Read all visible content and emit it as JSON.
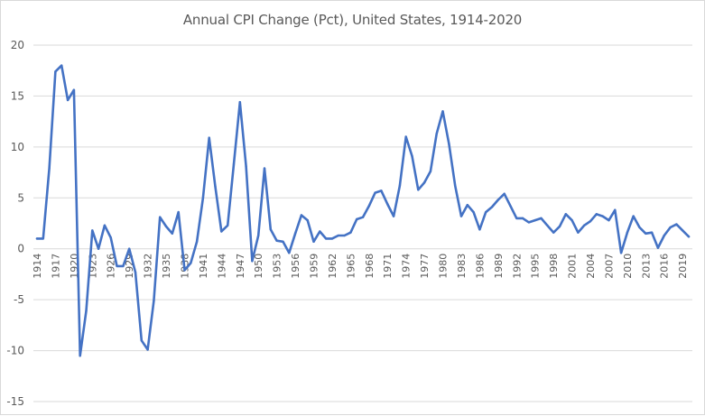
{
  "chart_data": {
    "type": "line",
    "title": "Annual CPI Change (Pct), United States, 1914-2020",
    "xlabel": "",
    "ylabel": "",
    "ylim": [
      -15,
      20
    ],
    "yticks": [
      20,
      15,
      10,
      5,
      0,
      -5,
      -10,
      -15
    ],
    "grid": true,
    "legend": "none",
    "line_color": "#4472c4",
    "x_tick_labels": [
      "1914",
      "1917",
      "1920",
      "1923",
      "1926",
      "1929",
      "1932",
      "1935",
      "1938",
      "1941",
      "1944",
      "1947",
      "1950",
      "1953",
      "1956",
      "1959",
      "1962",
      "1965",
      "1968",
      "1971",
      "1974",
      "1977",
      "1980",
      "1983",
      "1986",
      "1989",
      "1992",
      "1995",
      "1998",
      "2001",
      "2004",
      "2007",
      "2010",
      "2013",
      "2016",
      "2019"
    ],
    "series": [
      {
        "name": "Annual CPI Change (Pct)",
        "x": [
          1914,
          1915,
          1916,
          1917,
          1918,
          1919,
          1920,
          1921,
          1922,
          1923,
          1924,
          1925,
          1926,
          1927,
          1928,
          1929,
          1930,
          1931,
          1932,
          1933,
          1934,
          1935,
          1936,
          1937,
          1938,
          1939,
          1940,
          1941,
          1942,
          1943,
          1944,
          1945,
          1946,
          1947,
          1948,
          1949,
          1950,
          1951,
          1952,
          1953,
          1954,
          1955,
          1956,
          1957,
          1958,
          1959,
          1960,
          1961,
          1962,
          1963,
          1964,
          1965,
          1966,
          1967,
          1968,
          1969,
          1970,
          1971,
          1972,
          1973,
          1974,
          1975,
          1976,
          1977,
          1978,
          1979,
          1980,
          1981,
          1982,
          1983,
          1984,
          1985,
          1986,
          1987,
          1988,
          1989,
          1990,
          1991,
          1992,
          1993,
          1994,
          1995,
          1996,
          1997,
          1998,
          1999,
          2000,
          2001,
          2002,
          2003,
          2004,
          2005,
          2006,
          2007,
          2008,
          2009,
          2010,
          2011,
          2012,
          2013,
          2014,
          2015,
          2016,
          2017,
          2018,
          2019,
          2020
        ],
        "values": [
          1.0,
          1.0,
          7.9,
          17.4,
          18.0,
          14.6,
          15.6,
          -10.5,
          -6.1,
          1.8,
          0.0,
          2.3,
          1.1,
          -1.7,
          -1.7,
          0.0,
          -2.3,
          -9.0,
          -9.9,
          -5.1,
          3.1,
          2.2,
          1.5,
          3.6,
          -2.1,
          -1.4,
          0.7,
          5.0,
          10.9,
          6.1,
          1.7,
          2.3,
          8.3,
          14.4,
          8.1,
          -1.2,
          1.3,
          7.9,
          1.9,
          0.8,
          0.7,
          -0.4,
          1.5,
          3.3,
          2.8,
          0.7,
          1.7,
          1.0,
          1.0,
          1.3,
          1.3,
          1.6,
          2.9,
          3.1,
          4.2,
          5.5,
          5.7,
          4.4,
          3.2,
          6.2,
          11.0,
          9.1,
          5.8,
          6.5,
          7.6,
          11.3,
          13.5,
          10.3,
          6.2,
          3.2,
          4.3,
          3.6,
          1.9,
          3.6,
          4.1,
          4.8,
          5.4,
          4.2,
          3.0,
          3.0,
          2.6,
          2.8,
          3.0,
          2.3,
          1.6,
          2.2,
          3.4,
          2.8,
          1.6,
          2.3,
          2.7,
          3.4,
          3.2,
          2.8,
          3.8,
          -0.4,
          1.6,
          3.2,
          2.1,
          1.5,
          1.6,
          0.1,
          1.3,
          2.1,
          2.4,
          1.8,
          1.2
        ]
      }
    ]
  }
}
